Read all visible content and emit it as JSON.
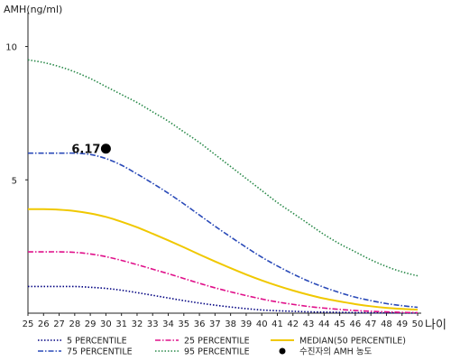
{
  "chart_data": {
    "type": "line",
    "ylabel": "AMH(ng/ml)",
    "xlabel": "나이",
    "xlim": [
      25,
      50
    ],
    "ylim": [
      0,
      11
    ],
    "x_ticks": [
      25,
      26,
      27,
      28,
      29,
      30,
      31,
      32,
      33,
      34,
      35,
      36,
      37,
      38,
      39,
      40,
      41,
      42,
      43,
      44,
      45,
      46,
      47,
      48,
      49,
      50
    ],
    "y_ticks": [
      5,
      10
    ],
    "legend_position": "bottom",
    "series": [
      {
        "name": "5 PERCENTILE",
        "color": "#000080",
        "style": "dotted",
        "x": [
          25,
          26,
          27,
          28,
          29,
          30,
          31,
          32,
          33,
          34,
          35,
          36,
          37,
          38,
          39,
          40,
          41,
          42,
          43,
          44,
          45,
          46,
          47,
          48,
          49,
          50
        ],
        "y": [
          1.0,
          1.0,
          1.0,
          1.0,
          0.97,
          0.93,
          0.86,
          0.77,
          0.67,
          0.57,
          0.47,
          0.38,
          0.3,
          0.23,
          0.17,
          0.12,
          0.09,
          0.07,
          0.05,
          0.04,
          0.03,
          0.02,
          0.015,
          0.01,
          0.008,
          0.005
        ]
      },
      {
        "name": "25 PERCENTILE",
        "color": "#e0108a",
        "style": "dashdot",
        "x": [
          25,
          26,
          27,
          28,
          29,
          30,
          31,
          32,
          33,
          34,
          35,
          36,
          37,
          38,
          39,
          40,
          41,
          42,
          43,
          44,
          45,
          46,
          47,
          48,
          49,
          50
        ],
        "y": [
          2.3,
          2.3,
          2.3,
          2.28,
          2.22,
          2.12,
          1.98,
          1.82,
          1.65,
          1.48,
          1.3,
          1.12,
          0.95,
          0.8,
          0.66,
          0.53,
          0.42,
          0.33,
          0.25,
          0.19,
          0.14,
          0.1,
          0.07,
          0.05,
          0.03,
          0.02
        ]
      },
      {
        "name": "MEDIAN(50 PERCENTILE)",
        "color": "#f0c800",
        "style": "solid",
        "x": [
          25,
          26,
          27,
          28,
          29,
          30,
          31,
          32,
          33,
          34,
          35,
          36,
          37,
          38,
          39,
          40,
          41,
          42,
          43,
          44,
          45,
          46,
          47,
          48,
          49,
          50
        ],
        "y": [
          3.9,
          3.9,
          3.88,
          3.83,
          3.74,
          3.61,
          3.43,
          3.22,
          2.98,
          2.73,
          2.47,
          2.2,
          1.94,
          1.69,
          1.45,
          1.23,
          1.03,
          0.85,
          0.69,
          0.55,
          0.44,
          0.34,
          0.26,
          0.2,
          0.16,
          0.13
        ]
      },
      {
        "name": "75 PERCENTILE",
        "color": "#2a4ab8",
        "style": "dashdot",
        "x": [
          25,
          26,
          27,
          28,
          29,
          30,
          31,
          32,
          33,
          34,
          35,
          36,
          37,
          38,
          39,
          40,
          41,
          42,
          43,
          44,
          45,
          46,
          47,
          48,
          49,
          50
        ],
        "y": [
          6.0,
          6.0,
          6.0,
          6.0,
          5.95,
          5.8,
          5.55,
          5.22,
          4.87,
          4.5,
          4.1,
          3.68,
          3.26,
          2.86,
          2.47,
          2.1,
          1.77,
          1.47,
          1.2,
          0.97,
          0.77,
          0.6,
          0.47,
          0.36,
          0.28,
          0.22
        ]
      },
      {
        "name": "95 PERCENTILE",
        "color": "#2a8a4a",
        "style": "dotted",
        "x": [
          25,
          26,
          27,
          28,
          29,
          30,
          31,
          32,
          33,
          34,
          35,
          36,
          37,
          38,
          39,
          40,
          41,
          42,
          43,
          44,
          45,
          46,
          47,
          48,
          49,
          50
        ],
        "y": [
          9.5,
          9.4,
          9.25,
          9.05,
          8.8,
          8.5,
          8.2,
          7.9,
          7.55,
          7.2,
          6.8,
          6.4,
          5.95,
          5.5,
          5.05,
          4.6,
          4.15,
          3.75,
          3.35,
          2.95,
          2.6,
          2.3,
          2.0,
          1.75,
          1.55,
          1.4
        ]
      }
    ],
    "marker": {
      "name": "수진자의 AMH 농도",
      "x": 30,
      "y": 6.17,
      "label": "6.17",
      "color": "#000000"
    }
  }
}
